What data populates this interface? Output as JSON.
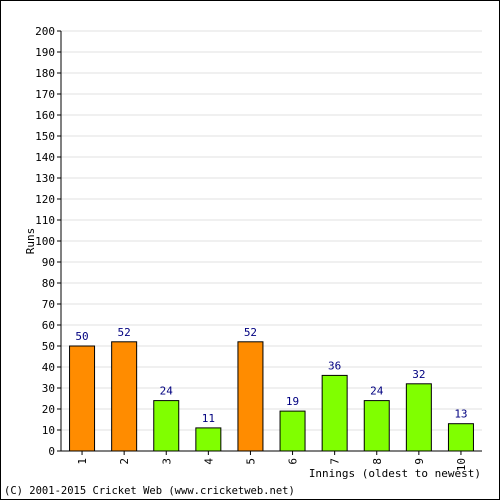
{
  "chart_data": {
    "type": "bar",
    "categories": [
      "1",
      "2",
      "3",
      "4",
      "5",
      "6",
      "7",
      "8",
      "9",
      "10"
    ],
    "values": [
      50,
      52,
      24,
      11,
      52,
      19,
      36,
      24,
      32,
      13
    ],
    "bar_colors": [
      "#ff8c00",
      "#ff8c00",
      "#80ff00",
      "#80ff00",
      "#ff8c00",
      "#80ff00",
      "#80ff00",
      "#80ff00",
      "#80ff00",
      "#80ff00"
    ],
    "ylabel": "Runs",
    "xlabel": "Innings (oldest to newest)",
    "ylim": [
      0,
      200
    ],
    "ytick_step": 10,
    "grid": true,
    "data_label_color": "#000080"
  },
  "footer": {
    "copyright": "(C) 2001-2015 Cricket Web (www.cricketweb.net)"
  }
}
